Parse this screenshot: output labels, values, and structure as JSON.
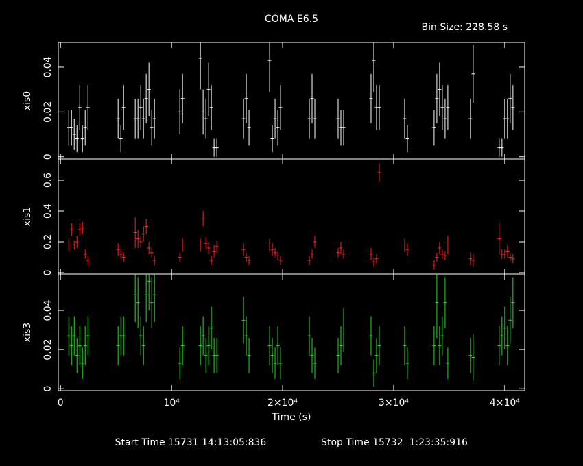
{
  "title": "COMA E6.5",
  "bin_size": "Bin Size: 228.58 s",
  "xlabel": "Time (s)",
  "start_time": "Start Time 15731 14:13:05:836",
  "stop_time": "Stop Time 15732  1:23:35:916",
  "xlim": [
    -200,
    41800
  ],
  "xticks": [
    0,
    {
      "value": 10000,
      "label": "10⁴"
    },
    {
      "value": 20000,
      "label": "2×10⁴"
    },
    {
      "value": 30000,
      "label": "3×10⁴"
    },
    {
      "value": 40000,
      "label": "4×10⁴"
    }
  ],
  "chart_data": [
    {
      "type": "errorbar",
      "ylabel": "xis0",
      "color": "#ffffff",
      "ylim": [
        -0.001,
        0.051
      ],
      "yticks": [
        0,
        0.02,
        0.04
      ],
      "x": [
        741,
        988,
        1235,
        1481,
        1728,
        1975,
        2222,
        2469,
        5185,
        5432,
        5679,
        6728,
        6975,
        7222,
        7469,
        7716,
        7963,
        8210,
        8457,
        10741,
        10988,
        12593,
        12840,
        13087,
        13333,
        13580,
        13827,
        14074,
        16481,
        16728,
        16975,
        18827,
        19074,
        19321,
        19568,
        19815,
        22407,
        22654,
        22901,
        25000,
        25247,
        25494,
        27963,
        28210,
        28457,
        28704,
        30988,
        31235,
        33642,
        33889,
        34136,
        34383,
        34630,
        34877,
        36914,
        37160,
        39506,
        39753,
        40000,
        40247,
        40494,
        40741
      ],
      "values": [
        0.013,
        0.013,
        0.01,
        0.008,
        0.022,
        0.008,
        0.013,
        0.022,
        0.017,
        0.008,
        0.022,
        0.017,
        0.017,
        0.022,
        0.017,
        0.026,
        0.03,
        0.013,
        0.017,
        0.02,
        0.026,
        0.044,
        0.02,
        0.017,
        0.03,
        0.022,
        0.004,
        0.004,
        0.017,
        0.026,
        0.013,
        0.043,
        0.008,
        0.017,
        0.013,
        0.022,
        0.017,
        0.026,
        0.017,
        0.017,
        0.013,
        0.013,
        0.026,
        0.043,
        0.022,
        0.022,
        0.017,
        0.008,
        0.013,
        0.026,
        0.03,
        0.022,
        0.017,
        0.022,
        0.017,
        0.037,
        0.004,
        0.004,
        0.017,
        0.017,
        0.026,
        0.022
      ],
      "errors": [
        0.008,
        0.008,
        0.007,
        0.006,
        0.01,
        0.006,
        0.008,
        0.01,
        0.009,
        0.006,
        0.01,
        0.009,
        0.009,
        0.01,
        0.009,
        0.011,
        0.012,
        0.008,
        0.009,
        0.01,
        0.011,
        0.014,
        0.01,
        0.009,
        0.012,
        0.01,
        0.004,
        0.004,
        0.009,
        0.011,
        0.008,
        0.014,
        0.006,
        0.009,
        0.008,
        0.01,
        0.009,
        0.011,
        0.009,
        0.009,
        0.008,
        0.008,
        0.011,
        0.014,
        0.01,
        0.01,
        0.009,
        0.006,
        0.008,
        0.011,
        0.012,
        0.01,
        0.009,
        0.01,
        0.009,
        0.013,
        0.004,
        0.004,
        0.009,
        0.009,
        0.011,
        0.01
      ]
    },
    {
      "type": "errorbar",
      "ylabel": "xis1",
      "color": "#ff2020",
      "ylim": [
        -0.009,
        0.738
      ],
      "yticks": [
        0,
        0.2,
        0.4,
        0.6
      ],
      "x": [
        741,
        988,
        1235,
        1481,
        1728,
        1975,
        2222,
        2469,
        5185,
        5432,
        5679,
        6728,
        6975,
        7222,
        7469,
        7716,
        7963,
        8210,
        8457,
        10741,
        10988,
        12593,
        12840,
        13087,
        13333,
        13580,
        13827,
        14074,
        16481,
        16728,
        16975,
        18827,
        19074,
        19321,
        19568,
        19815,
        22407,
        22654,
        22901,
        25000,
        25247,
        25494,
        27963,
        28210,
        28457,
        28704,
        30988,
        31235,
        33642,
        33889,
        34136,
        34383,
        34630,
        34877,
        36914,
        37160,
        39506,
        39753,
        40000,
        40247,
        40494,
        40741
      ],
      "values": [
        0.18,
        0.28,
        0.18,
        0.2,
        0.28,
        0.29,
        0.12,
        0.08,
        0.15,
        0.12,
        0.1,
        0.26,
        0.22,
        0.2,
        0.25,
        0.3,
        0.16,
        0.13,
        0.08,
        0.1,
        0.18,
        0.18,
        0.35,
        0.19,
        0.16,
        0.08,
        0.14,
        0.17,
        0.15,
        0.1,
        0.08,
        0.18,
        0.15,
        0.13,
        0.11,
        0.08,
        0.08,
        0.12,
        0.2,
        0.13,
        0.16,
        0.12,
        0.12,
        0.07,
        0.09,
        0.65,
        0.18,
        0.15,
        0.05,
        0.1,
        0.16,
        0.12,
        0.11,
        0.18,
        0.09,
        0.08,
        0.22,
        0.12,
        0.12,
        0.14,
        0.1,
        0.09
      ],
      "errors": [
        0.04,
        0.04,
        0.03,
        0.04,
        0.04,
        0.04,
        0.03,
        0.03,
        0.04,
        0.03,
        0.03,
        0.1,
        0.06,
        0.04,
        0.05,
        0.05,
        0.04,
        0.03,
        0.03,
        0.03,
        0.04,
        0.04,
        0.05,
        0.04,
        0.04,
        0.03,
        0.04,
        0.04,
        0.04,
        0.03,
        0.03,
        0.04,
        0.04,
        0.03,
        0.03,
        0.03,
        0.03,
        0.03,
        0.04,
        0.03,
        0.04,
        0.03,
        0.04,
        0.03,
        0.03,
        0.06,
        0.04,
        0.04,
        0.03,
        0.03,
        0.04,
        0.03,
        0.03,
        0.06,
        0.04,
        0.04,
        0.1,
        0.03,
        0.03,
        0.04,
        0.03,
        0.03
      ]
    },
    {
      "type": "errorbar",
      "ylabel": "xis3",
      "color": "#20e020",
      "ylim": [
        -0.001,
        0.0586
      ],
      "yticks": [
        0,
        0.02,
        0.04
      ],
      "x": [
        741,
        988,
        1235,
        1481,
        1728,
        1975,
        2222,
        2469,
        5185,
        5432,
        5679,
        6728,
        6975,
        7222,
        7469,
        7716,
        7963,
        8210,
        8457,
        10741,
        10988,
        12593,
        12840,
        13087,
        13333,
        13580,
        13827,
        14074,
        16481,
        16728,
        16975,
        18827,
        19074,
        19321,
        19568,
        19815,
        22407,
        22654,
        22901,
        25000,
        25247,
        25494,
        27963,
        28210,
        28457,
        28704,
        30988,
        31235,
        33642,
        33889,
        34136,
        34383,
        34630,
        34877,
        36914,
        37160,
        39506,
        39753,
        40000,
        40247,
        40494,
        40741
      ],
      "values": [
        0.027,
        0.022,
        0.027,
        0.017,
        0.022,
        0.013,
        0.022,
        0.027,
        0.022,
        0.027,
        0.027,
        0.048,
        0.044,
        0.027,
        0.022,
        0.048,
        0.055,
        0.044,
        0.048,
        0.013,
        0.022,
        0.022,
        0.027,
        0.017,
        0.022,
        0.031,
        0.017,
        0.017,
        0.035,
        0.027,
        0.017,
        0.022,
        0.017,
        0.013,
        0.022,
        0.013,
        0.027,
        0.017,
        0.013,
        0.017,
        0.022,
        0.03,
        0.027,
        0.008,
        0.017,
        0.022,
        0.022,
        0.013,
        0.022,
        0.044,
        0.022,
        0.027,
        0.044,
        0.013,
        0.017,
        0.016,
        0.022,
        0.027,
        0.031,
        0.022,
        0.035,
        0.044
      ],
      "errors": [
        0.01,
        0.01,
        0.01,
        0.009,
        0.01,
        0.008,
        0.01,
        0.01,
        0.01,
        0.01,
        0.01,
        0.014,
        0.013,
        0.01,
        0.01,
        0.014,
        0.015,
        0.013,
        0.014,
        0.008,
        0.01,
        0.01,
        0.01,
        0.009,
        0.01,
        0.011,
        0.009,
        0.009,
        0.012,
        0.01,
        0.009,
        0.01,
        0.009,
        0.008,
        0.01,
        0.008,
        0.01,
        0.009,
        0.008,
        0.009,
        0.01,
        0.011,
        0.01,
        0.007,
        0.009,
        0.01,
        0.01,
        0.008,
        0.01,
        0.018,
        0.01,
        0.01,
        0.013,
        0.008,
        0.009,
        0.012,
        0.01,
        0.01,
        0.011,
        0.01,
        0.012,
        0.013
      ]
    }
  ]
}
